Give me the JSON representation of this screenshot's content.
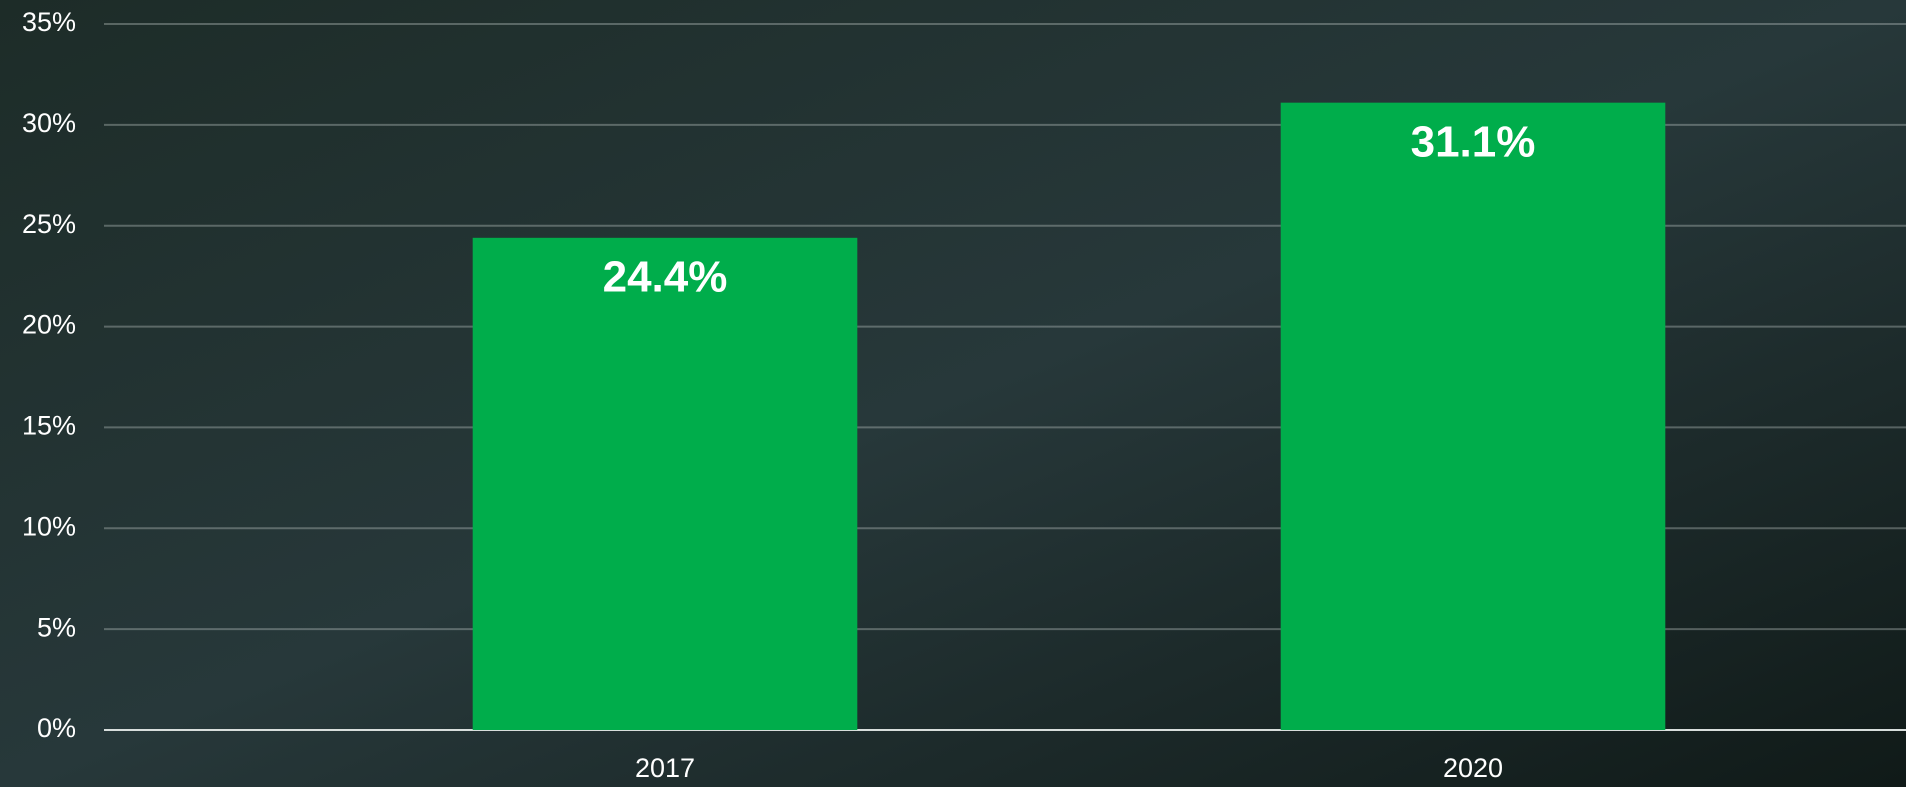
{
  "chart_data": {
    "type": "bar",
    "categories": [
      "2017",
      "2020"
    ],
    "values": [
      24.4,
      31.1
    ],
    "value_labels": [
      "24.4%",
      "31.1%"
    ],
    "color": "#00ad4b",
    "ylim": [
      0,
      35
    ],
    "yticks": [
      {
        "value": 0,
        "label": "0%"
      },
      {
        "value": 5,
        "label": "5%"
      },
      {
        "value": 10,
        "label": "10%"
      },
      {
        "value": 15,
        "label": "15%"
      },
      {
        "value": 20,
        "label": "20%"
      },
      {
        "value": 25,
        "label": "25%"
      },
      {
        "value": 30,
        "label": "30%"
      },
      {
        "value": 35,
        "label": "35%"
      }
    ],
    "grid": true
  }
}
